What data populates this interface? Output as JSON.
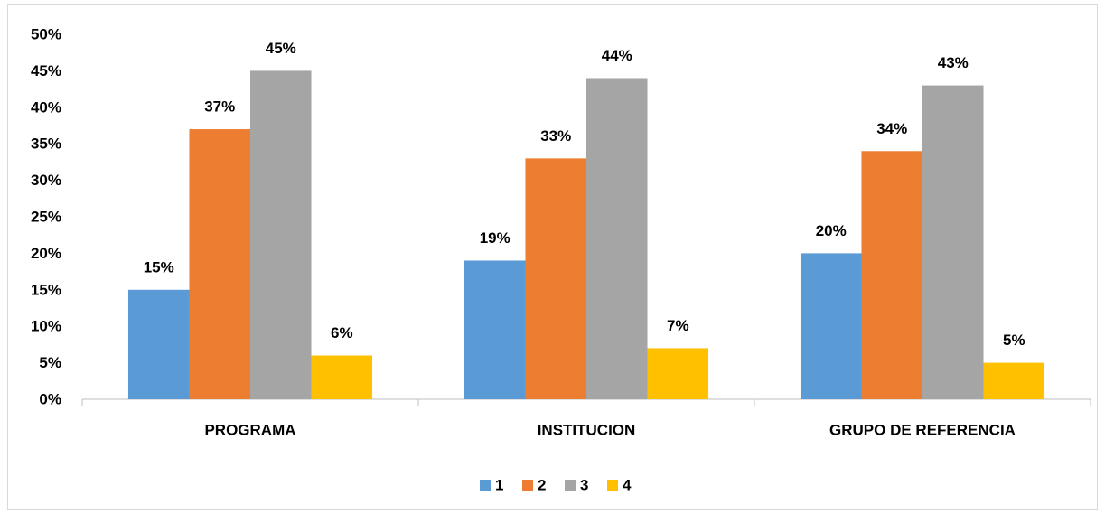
{
  "chart_data": {
    "type": "bar",
    "categories": [
      "PROGRAMA",
      "INSTITUCION",
      "GRUPO DE REFERENCIA"
    ],
    "series": [
      {
        "name": "1",
        "color": "#5b9bd5",
        "values": [
          15,
          19,
          20
        ],
        "value_labels": [
          "15%",
          "19%",
          "20%"
        ]
      },
      {
        "name": "2",
        "color": "#ed7d31",
        "values": [
          37,
          33,
          34
        ],
        "value_labels": [
          "37%",
          "33%",
          "34%"
        ]
      },
      {
        "name": "3",
        "color": "#a5a5a5",
        "values": [
          45,
          44,
          43
        ],
        "value_labels": [
          "45%",
          "44%",
          "43%"
        ]
      },
      {
        "name": "4",
        "color": "#ffc000",
        "values": [
          6,
          7,
          5
        ],
        "value_labels": [
          "6%",
          "7%",
          "5%"
        ]
      }
    ],
    "ylim": [
      0,
      50
    ],
    "yticks": [
      {
        "value": 0,
        "label": "0%"
      },
      {
        "value": 5,
        "label": "5%"
      },
      {
        "value": 10,
        "label": "10%"
      },
      {
        "value": 15,
        "label": "15%"
      },
      {
        "value": 20,
        "label": "20%"
      },
      {
        "value": 25,
        "label": "25%"
      },
      {
        "value": 30,
        "label": "30%"
      },
      {
        "value": 35,
        "label": "35%"
      },
      {
        "value": 40,
        "label": "40%"
      },
      {
        "value": 45,
        "label": "45%"
      },
      {
        "value": 50,
        "label": "50%"
      }
    ],
    "grid": false,
    "legend": "bottom"
  }
}
